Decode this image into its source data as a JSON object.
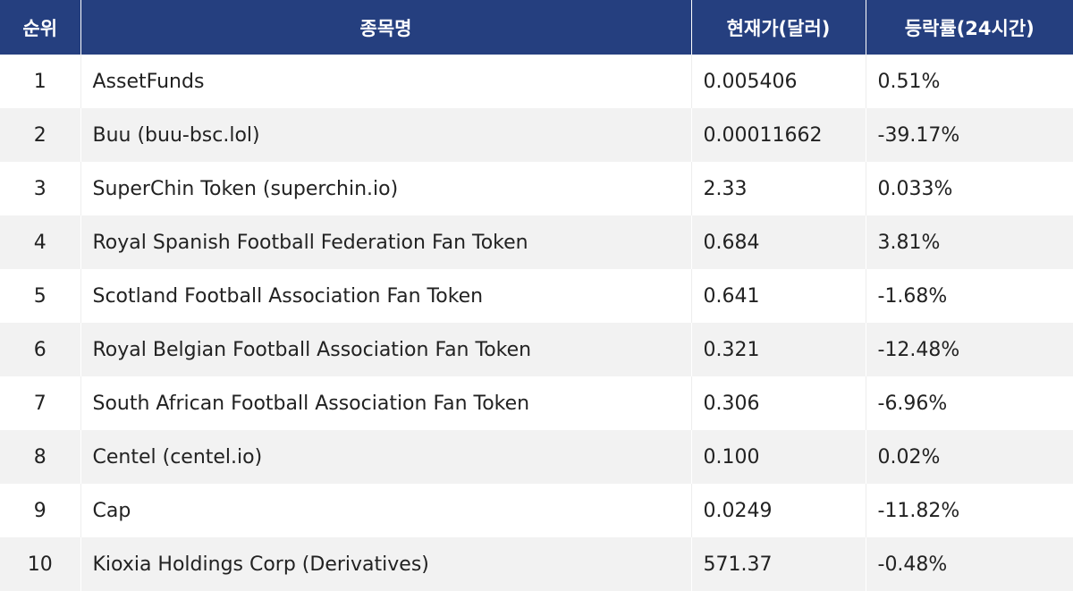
{
  "table": {
    "headers": {
      "rank": "순위",
      "name": "종목명",
      "price": "현재가(달러)",
      "change": "등락률(24시간)"
    },
    "rows": [
      {
        "rank": "1",
        "name": "AssetFunds",
        "price": "0.005406",
        "change": "0.51%"
      },
      {
        "rank": "2",
        "name": "Buu (buu-bsc.lol)",
        "price": "0.00011662",
        "change": "-39.17%"
      },
      {
        "rank": "3",
        "name": "SuperChin Token (superchin.io)",
        "price": "2.33",
        "change": "0.033%"
      },
      {
        "rank": "4",
        "name": "Royal Spanish Football Federation Fan Token",
        "price": "0.684",
        "change": "3.81%"
      },
      {
        "rank": "5",
        "name": "Scotland Football Association Fan Token",
        "price": "0.641",
        "change": "-1.68%"
      },
      {
        "rank": "6",
        "name": "Royal Belgian Football Association Fan Token",
        "price": "0.321",
        "change": "-12.48%"
      },
      {
        "rank": "7",
        "name": "South African Football Association Fan Token",
        "price": "0.306",
        "change": "-6.96%"
      },
      {
        "rank": "8",
        "name": "Centel (centel.io)",
        "price": "0.100",
        "change": "0.02%"
      },
      {
        "rank": "9",
        "name": "Cap",
        "price": "0.0249",
        "change": "-11.82%"
      },
      {
        "rank": "10",
        "name": "Kioxia Holdings Corp (Derivatives)",
        "price": "571.37",
        "change": "-0.48%"
      }
    ]
  },
  "colors": {
    "header_bg": "#253f7f",
    "header_text": "#ffffff",
    "row_alt_bg": "#f2f2f2"
  }
}
